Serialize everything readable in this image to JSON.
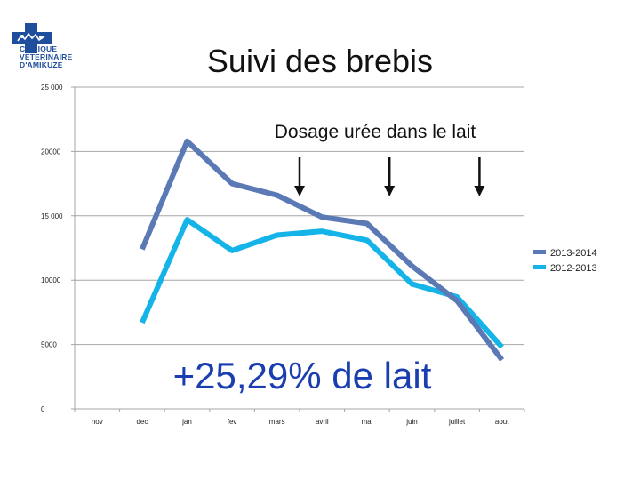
{
  "logo": {
    "lines": [
      "CLINIQUE",
      "VETERINAIRE",
      "D'AMIKUZE"
    ]
  },
  "slide_title": "Suivi des brebis",
  "annotation_text": "Dosage urée dans le lait",
  "callout_text": "+25,29% de lait",
  "chart_data": {
    "type": "line",
    "title": "",
    "xlabel": "",
    "ylabel": "",
    "categories": [
      "nov",
      "dec",
      "jan",
      "fev",
      "mars",
      "avril",
      "mai",
      "juin",
      "juillet",
      "aout"
    ],
    "y_tick_labels": [
      "0",
      "5000",
      "10000",
      "15 000",
      "20000",
      "25 000"
    ],
    "ylim": [
      0,
      25000
    ],
    "grid": true,
    "legend_position": "right",
    "series": [
      {
        "name": "2013-2014",
        "color": "#5b79b5",
        "values": [
          null,
          12400,
          20800,
          17500,
          16600,
          14900,
          14400,
          11100,
          8400,
          3800
        ]
      },
      {
        "name": "2012-2013",
        "color": "#14b4e8",
        "values": [
          null,
          6700,
          14700,
          12300,
          13500,
          13800,
          13100,
          9700,
          8700,
          4800
        ]
      }
    ],
    "arrow_categories": [
      "mars",
      "mai",
      "juillet"
    ]
  }
}
